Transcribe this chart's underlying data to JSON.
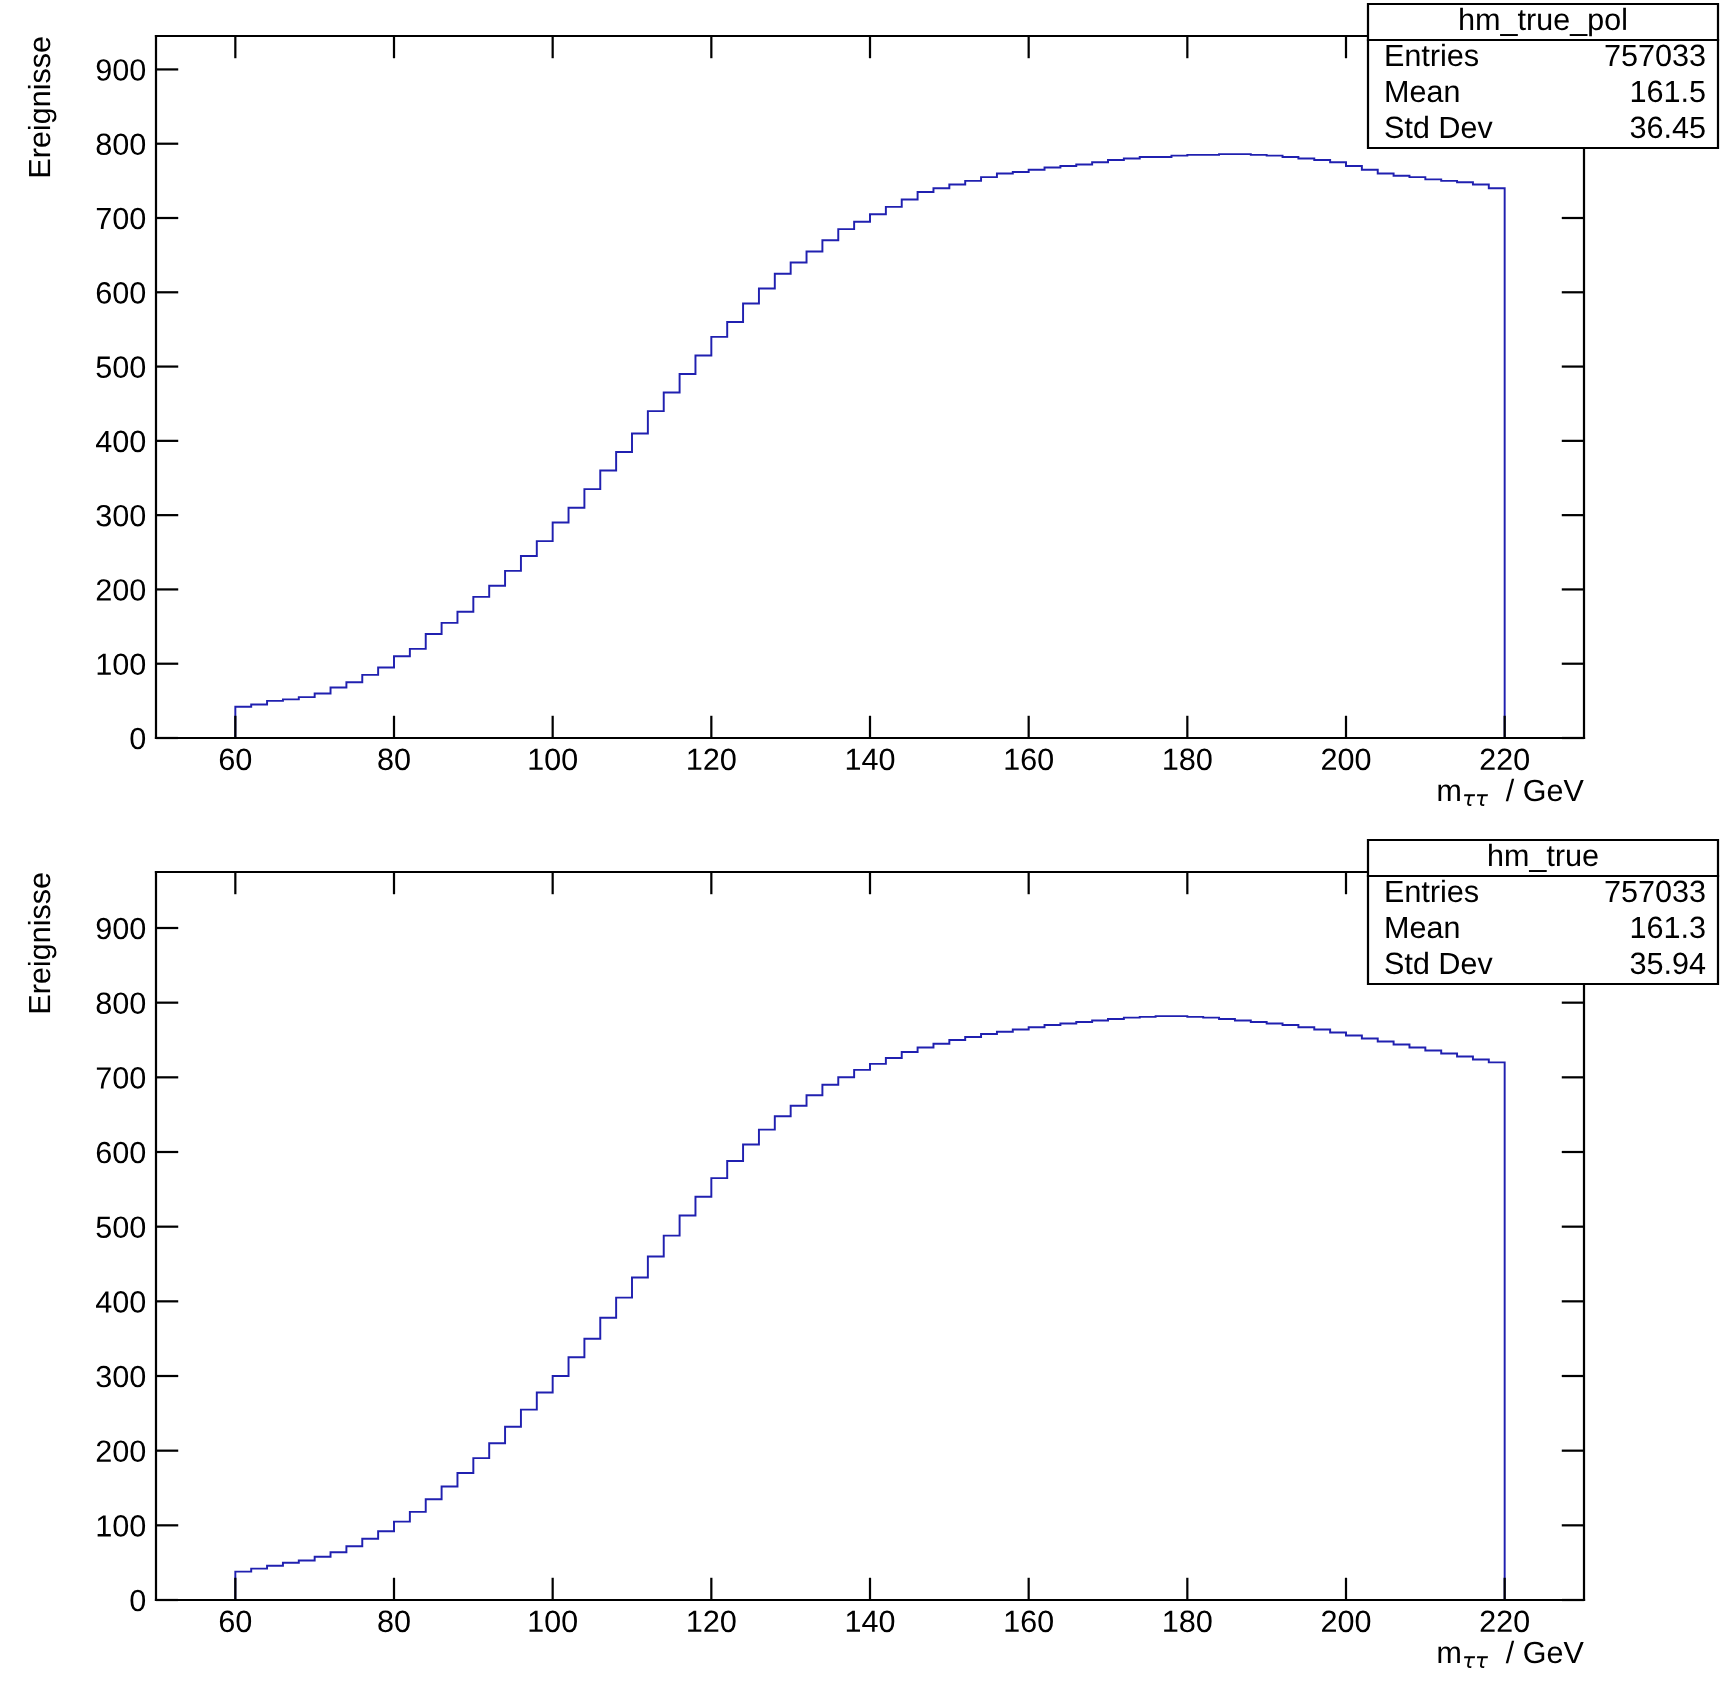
{
  "chart_data": [
    {
      "type": "histogram",
      "ylabel": "Ereignisse",
      "xlabel": "m$_{ττ}$  / GeV",
      "xlim": [
        50,
        230
      ],
      "xticks": [
        60,
        80,
        100,
        120,
        140,
        160,
        180,
        200,
        220
      ],
      "ylim": [
        0,
        945
      ],
      "yticks": [
        0,
        100,
        200,
        300,
        400,
        500,
        600,
        700,
        800,
        900
      ],
      "grid": false,
      "color": "#2020b0",
      "bins": [
        60,
        62,
        64,
        66,
        68,
        70,
        72,
        74,
        76,
        78,
        80,
        82,
        84,
        86,
        88,
        90,
        92,
        94,
        96,
        98,
        100,
        102,
        104,
        106,
        108,
        110,
        112,
        114,
        116,
        118,
        120,
        122,
        124,
        126,
        128,
        130,
        132,
        134,
        136,
        138,
        140,
        142,
        144,
        146,
        148,
        150,
        152,
        154,
        156,
        158,
        160,
        162,
        164,
        166,
        168,
        170,
        172,
        174,
        176,
        178,
        180,
        182,
        184,
        186,
        188,
        190,
        192,
        194,
        196,
        198,
        200,
        202,
        204,
        206,
        208,
        210,
        212,
        214,
        216,
        218,
        220
      ],
      "values": [
        42,
        45,
        50,
        52,
        55,
        60,
        68,
        75,
        85,
        95,
        110,
        120,
        140,
        155,
        170,
        190,
        205,
        225,
        245,
        265,
        290,
        310,
        335,
        360,
        385,
        410,
        440,
        465,
        490,
        515,
        540,
        560,
        585,
        605,
        625,
        640,
        655,
        670,
        685,
        695,
        705,
        715,
        725,
        735,
        740,
        745,
        750,
        755,
        760,
        762,
        765,
        768,
        770,
        772,
        775,
        778,
        780,
        782,
        782,
        784,
        785,
        785,
        786,
        786,
        785,
        784,
        782,
        780,
        778,
        775,
        770,
        765,
        760,
        757,
        755,
        752,
        750,
        748,
        745,
        740
      ],
      "annotations": [
        "hm_true_pol",
        "Entries",
        "757033",
        "Mean",
        "161.5",
        "Std Dev",
        "36.45"
      ]
    },
    {
      "type": "histogram",
      "ylabel": "Ereignisse",
      "xlabel": "m$_{ττ}$  / GeV",
      "xlim": [
        50,
        230
      ],
      "xticks": [
        60,
        80,
        100,
        120,
        140,
        160,
        180,
        200,
        220
      ],
      "ylim": [
        0,
        975
      ],
      "yticks": [
        0,
        100,
        200,
        300,
        400,
        500,
        600,
        700,
        800,
        900
      ],
      "grid": false,
      "color": "#2020b0",
      "bins": [
        60,
        62,
        64,
        66,
        68,
        70,
        72,
        74,
        76,
        78,
        80,
        82,
        84,
        86,
        88,
        90,
        92,
        94,
        96,
        98,
        100,
        102,
        104,
        106,
        108,
        110,
        112,
        114,
        116,
        118,
        120,
        122,
        124,
        126,
        128,
        130,
        132,
        134,
        136,
        138,
        140,
        142,
        144,
        146,
        148,
        150,
        152,
        154,
        156,
        158,
        160,
        162,
        164,
        166,
        168,
        170,
        172,
        174,
        176,
        178,
        180,
        182,
        184,
        186,
        188,
        190,
        192,
        194,
        196,
        198,
        200,
        202,
        204,
        206,
        208,
        210,
        212,
        214,
        216,
        218,
        220
      ],
      "values": [
        38,
        42,
        46,
        50,
        53,
        58,
        64,
        72,
        82,
        92,
        105,
        118,
        135,
        152,
        170,
        190,
        210,
        232,
        255,
        278,
        300,
        325,
        350,
        378,
        405,
        432,
        460,
        488,
        515,
        540,
        565,
        588,
        610,
        630,
        648,
        662,
        676,
        690,
        700,
        710,
        718,
        726,
        734,
        740,
        745,
        750,
        754,
        758,
        761,
        764,
        767,
        770,
        772,
        774,
        776,
        778,
        780,
        781,
        782,
        782,
        781,
        780,
        778,
        776,
        774,
        772,
        770,
        767,
        764,
        760,
        756,
        752,
        748,
        744,
        740,
        736,
        732,
        728,
        724,
        720
      ],
      "annotations": [
        "hm_true",
        "Entries",
        "757033",
        "Mean",
        "161.3",
        "Std Dev",
        "35.94"
      ]
    }
  ]
}
